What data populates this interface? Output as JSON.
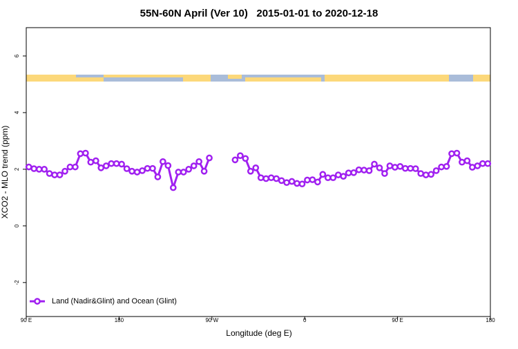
{
  "chart_data": {
    "type": "line",
    "title": "55N-60N April (Ver 10)   2015-01-01 to 2020-12-18",
    "xlabel": "Longitude (deg E)",
    "ylabel": "XCO2 - MLO trend (ppm)",
    "x": [
      92.5,
      97.5,
      102.5,
      107.5,
      112.5,
      117.5,
      122.5,
      127.5,
      132.5,
      137.5,
      142.5,
      147.5,
      152.5,
      157.5,
      162.5,
      167.5,
      172.5,
      177.5,
      182.5,
      187.5,
      192.5,
      197.5,
      202.5,
      207.5,
      212.5,
      217.5,
      222.5,
      227.5,
      232.5,
      237.5,
      242.5,
      247.5,
      252.5,
      257.5,
      262.5,
      267.5,
      272.5,
      277.5,
      282.5,
      287.5,
      292.5,
      297.5,
      302.5,
      307.5,
      312.5,
      317.5,
      322.5,
      327.5,
      332.5,
      337.5,
      342.5,
      347.5,
      352.5,
      357.5,
      362.5,
      367.5,
      372.5,
      377.5,
      382.5,
      387.5,
      392.5,
      397.5,
      402.5,
      407.5,
      412.5,
      417.5,
      422.5,
      427.5,
      432.5,
      437.5,
      442.5,
      447.5,
      452.5,
      457.5,
      462.5,
      467.5,
      472.5,
      477.5,
      482.5,
      487.5,
      492.5,
      497.5,
      502.5,
      507.5,
      512.5,
      517.5,
      522.5,
      527.5,
      532.5,
      537.5
    ],
    "series": [
      {
        "name": "Land (Nadir&Glint) and Ocean (Glint)",
        "color": "#a020f0",
        "values": [
          2.08,
          2.02,
          2.0,
          2.0,
          1.85,
          1.8,
          1.8,
          1.93,
          2.08,
          2.08,
          2.55,
          2.57,
          2.25,
          2.3,
          2.05,
          2.12,
          2.2,
          2.2,
          2.18,
          2.02,
          1.93,
          1.9,
          1.95,
          2.03,
          2.03,
          1.73,
          2.27,
          2.13,
          1.35,
          1.9,
          1.9,
          2.0,
          2.12,
          2.27,
          1.93,
          2.4,
          null,
          null,
          null,
          null,
          2.33,
          2.48,
          2.38,
          1.93,
          2.05,
          1.7,
          1.67,
          1.7,
          1.67,
          1.6,
          1.53,
          1.57,
          1.5,
          1.48,
          1.62,
          1.63,
          1.55,
          1.82,
          1.7,
          1.7,
          1.8,
          1.75,
          1.87,
          1.88,
          1.98,
          1.97,
          1.95,
          2.18,
          2.05,
          1.85,
          2.12,
          2.07,
          2.1,
          2.03,
          2.03,
          2.02,
          1.85,
          1.8,
          1.82,
          1.95,
          2.08,
          2.1,
          2.55,
          2.57,
          2.25,
          2.3,
          2.07,
          2.12,
          2.2,
          2.2
        ]
      }
    ],
    "xlim": [
      90,
      540
    ],
    "xticks": [
      {
        "value": 90,
        "label": "90 E"
      },
      180,
      {
        "value": 270,
        "label": "90 W"
      },
      {
        "value": 360,
        "label": "0"
      },
      {
        "value": 450,
        "label": "90 E"
      },
      {
        "value": 540,
        "label": "180"
      }
    ],
    "ylim": [
      -3.2,
      7
    ],
    "yticks": [
      -2,
      0,
      2,
      4,
      6
    ],
    "legend": "bottom-left"
  }
}
